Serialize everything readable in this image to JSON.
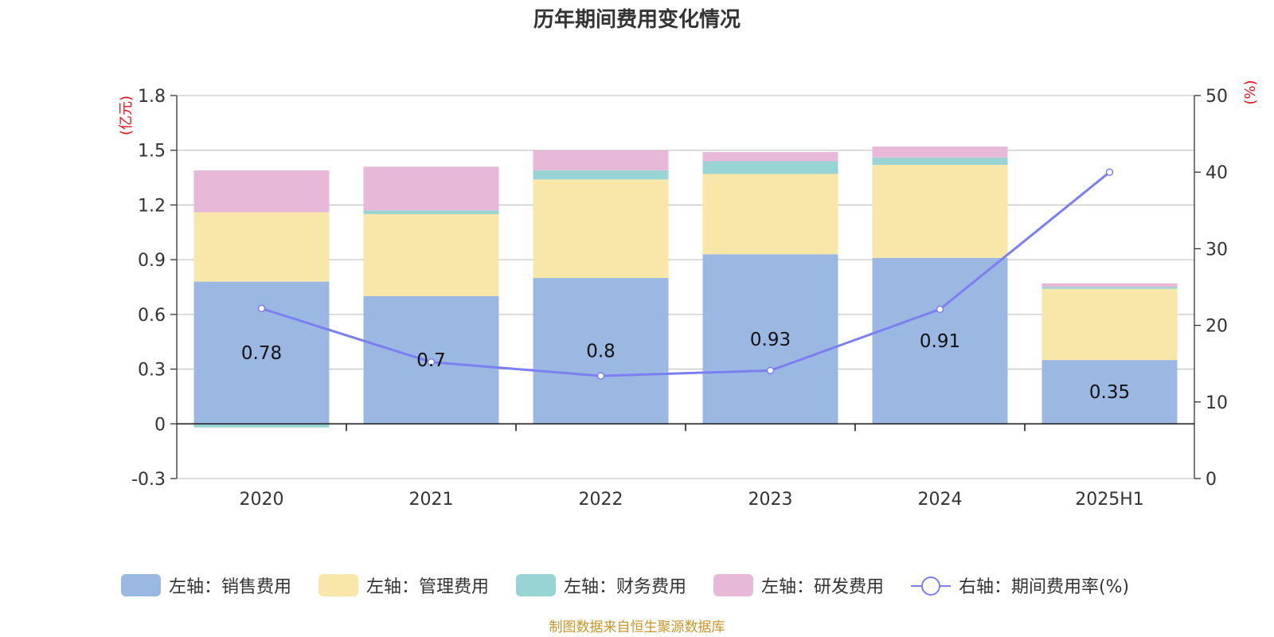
{
  "chart_data": {
    "type": "bar",
    "title": "历年期间费用变化情况",
    "categories": [
      "2020",
      "2021",
      "2022",
      "2023",
      "2024",
      "2025H1"
    ],
    "left_axis": {
      "unit": "(亿元)",
      "ylim": [
        -0.3,
        1.8
      ],
      "ticks": [
        "1.8",
        "1.5",
        "1.2",
        "0.9",
        "0.6",
        "0.3",
        "0",
        "-0.3"
      ],
      "tick_values": [
        1.8,
        1.5,
        1.2,
        0.9,
        0.6,
        0.3,
        0,
        -0.3
      ]
    },
    "right_axis": {
      "unit": "(%)",
      "ylim": [
        0,
        50
      ],
      "ticks": [
        "50",
        "40",
        "30",
        "20",
        "10",
        "0"
      ],
      "tick_values": [
        50,
        40,
        30,
        20,
        10,
        0
      ]
    },
    "stacked": true,
    "series": [
      {
        "name": "左轴：销售费用",
        "color": "#9bb8e2",
        "values": [
          0.78,
          0.7,
          0.8,
          0.93,
          0.91,
          0.35
        ]
      },
      {
        "name": "左轴：管理费用",
        "color": "#f8e7a8",
        "values": [
          0.38,
          0.45,
          0.54,
          0.44,
          0.51,
          0.39
        ]
      },
      {
        "name": "左轴：财务费用",
        "color": "#98d4d4",
        "values": [
          -0.02,
          0.02,
          0.05,
          0.07,
          0.04,
          0.01
        ]
      },
      {
        "name": "左轴：研发费用",
        "color": "#e8b8d8",
        "values": [
          0.23,
          0.24,
          0.11,
          0.05,
          0.06,
          0.02
        ]
      }
    ],
    "bar_labels": [
      "0.78",
      "0.7",
      "0.8",
      "0.93",
      "0.91",
      "0.35"
    ],
    "line": {
      "name": "右轴：期间费用率(%)",
      "color": "#7b7ff0",
      "values": [
        22.2,
        15.2,
        13.4,
        14.1,
        22.1,
        40.0
      ]
    },
    "source": "制图数据来自恒生聚源数据库",
    "grid": true,
    "legend_position": "bottom"
  }
}
